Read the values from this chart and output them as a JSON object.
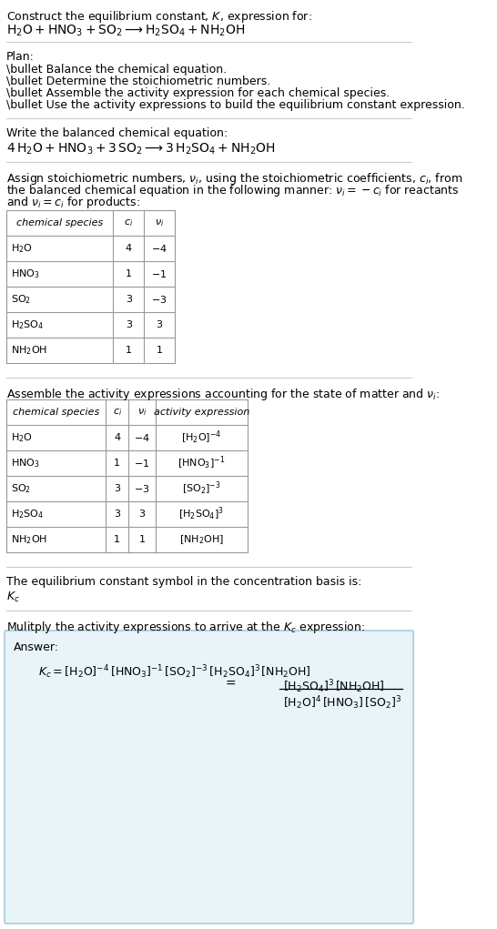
{
  "title_line1": "Construct the equilibrium constant, $K$, expression for:",
  "title_line2": "$\\mathrm{H_2O + HNO_3 + SO_2 \\longrightarrow H_2SO_4 + NH_2OH}$",
  "plan_header": "Plan:",
  "plan_items": [
    "\\bullet Balance the chemical equation.",
    "\\bullet Determine the stoichiometric numbers.",
    "\\bullet Assemble the activity expression for each chemical species.",
    "\\bullet Use the activity expressions to build the equilibrium constant expression."
  ],
  "balanced_header": "Write the balanced chemical equation:",
  "balanced_eq": "$\\mathrm{4\\,H_2O + HNO_3 + 3\\,SO_2 \\longrightarrow 3\\,H_2SO_4 + NH_2OH}$",
  "stoich_header": "Assign stoichiometric numbers, $\\nu_i$, using the stoichiometric coefficients, $c_i$, from the balanced chemical equation in the following manner: $\\nu_i = -c_i$ for reactants and $\\nu_i = c_i$ for products:",
  "table1_cols": [
    "chemical species",
    "$c_i$",
    "$\\nu_i$"
  ],
  "table1_data": [
    [
      "$\\mathrm{H_2O}$",
      "4",
      "$-4$"
    ],
    [
      "$\\mathrm{HNO_3}$",
      "1",
      "$-1$"
    ],
    [
      "$\\mathrm{SO_2}$",
      "3",
      "$-3$"
    ],
    [
      "$\\mathrm{H_2SO_4}$",
      "3",
      "3"
    ],
    [
      "$\\mathrm{NH_2OH}$",
      "1",
      "1"
    ]
  ],
  "activity_header": "Assemble the activity expressions accounting for the state of matter and $\\nu_i$:",
  "table2_cols": [
    "chemical species",
    "$c_i$",
    "$\\nu_i$",
    "activity expression"
  ],
  "table2_data": [
    [
      "$\\mathrm{H_2O}$",
      "4",
      "$-4$",
      "$[\\mathrm{H_2O}]^{-4}$"
    ],
    [
      "$\\mathrm{HNO_3}$",
      "1",
      "$-1$",
      "$[\\mathrm{HNO_3}]^{-1}$"
    ],
    [
      "$\\mathrm{SO_2}$",
      "3",
      "$-3$",
      "$[\\mathrm{SO_2}]^{-3}$"
    ],
    [
      "$\\mathrm{H_2SO_4}$",
      "3",
      "3",
      "$[\\mathrm{H_2SO_4}]^3$"
    ],
    [
      "$\\mathrm{NH_2OH}$",
      "1",
      "1",
      "$[\\mathrm{NH_2OH}]$"
    ]
  ],
  "kc_header": "The equilibrium constant symbol in the concentration basis is:",
  "kc_symbol": "$K_c$",
  "multiply_header": "Mulitply the activity expressions to arrive at the $K_c$ expression:",
  "answer_label": "Answer:",
  "kc_expression": "$K_c = [\\mathrm{H_2O}]^{-4}\\,[\\mathrm{HNO_3}]^{-1}\\,[\\mathrm{SO_2}]^{-3}\\,[\\mathrm{H_2SO_4}]^3\\,[\\mathrm{NH_2OH}]$",
  "kc_fraction_num": "$[\\mathrm{H_2SO_4}]^3\\,[\\mathrm{NH_2OH}]$",
  "kc_fraction_den": "$[\\mathrm{H_2O}]^4\\,[\\mathrm{HNO_3}]\\,[\\mathrm{SO_2}]^3$",
  "bg_color": "#ffffff",
  "table_header_bg": "#ffffff",
  "table_row_bg": "#ffffff",
  "answer_box_bg": "#e8f4f8",
  "answer_box_border": "#aaccdd",
  "divider_color": "#cccccc",
  "text_color": "#000000",
  "font_size": 9,
  "small_font": 8
}
